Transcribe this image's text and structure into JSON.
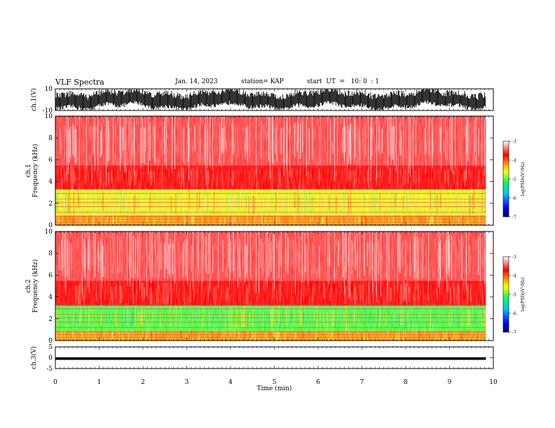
{
  "header": {
    "title": "VLF Spectra",
    "date": "Jan. 14, 2023",
    "station": "station= KAP",
    "start": "start  UT  =   10: 0  : 1"
  },
  "chart_data": [
    {
      "type": "line",
      "panel": "ch1-waveform",
      "title": "",
      "xlabel": "",
      "ylabel": "ch.1(V)",
      "xlim": [
        0,
        10
      ],
      "ylim": [
        -10,
        10
      ],
      "yticks": [
        "10",
        "-10"
      ],
      "x_extent": [
        0,
        9.83
      ],
      "series": [
        {
          "values_min": -8,
          "values_max": 9,
          "envelope": "dense noise band"
        }
      ],
      "color": "#000000"
    },
    {
      "type": "heatmap",
      "panel": "ch1-spectrogram",
      "ylabel": "ch.1\nFrequency (kHz)",
      "xlim": [
        0,
        10
      ],
      "ylim": [
        0,
        10
      ],
      "yticks": [
        "0",
        "2",
        "4",
        "6",
        "8",
        "10"
      ],
      "x_extent": [
        0,
        9.83
      ],
      "colorbar": {
        "label": "log(PSD)(V²/Hz)",
        "ticks": [
          "-3",
          "-4",
          "-5",
          "-6",
          "-7"
        ],
        "range": [
          -7,
          -3
        ],
        "colors": [
          "#000070",
          "#0000ff",
          "#00c0ff",
          "#00ff60",
          "#ffff00",
          "#ff8000",
          "#ff0000",
          "#ffffff"
        ]
      },
      "bands_khz": [
        {
          "from": 0,
          "to": 0.9,
          "level": "orange-yellow"
        },
        {
          "from": 0.9,
          "to": 3.3,
          "level": "yellow-green"
        },
        {
          "from": 3.3,
          "to": 5.5,
          "level": "red"
        },
        {
          "from": 5.5,
          "to": 10,
          "level": "light red / pink"
        }
      ]
    },
    {
      "type": "heatmap",
      "panel": "ch2-spectrogram",
      "ylabel": "ch.2\nFrequency (kHz)",
      "xlim": [
        0,
        10
      ],
      "ylim": [
        0,
        10
      ],
      "yticks": [
        "0",
        "2",
        "4",
        "6",
        "8",
        "10"
      ],
      "x_extent": [
        0,
        9.83
      ],
      "colorbar": {
        "label": "log(PSD)(V²/Hz)",
        "ticks": [
          "-3",
          "-4",
          "-5",
          "-6",
          "-7"
        ],
        "range": [
          -7,
          -3
        ]
      },
      "bands_khz": [
        {
          "from": 0,
          "to": 0.9,
          "level": "orange-yellow"
        },
        {
          "from": 0.9,
          "to": 3.2,
          "level": "green"
        },
        {
          "from": 3.2,
          "to": 5.5,
          "level": "red"
        },
        {
          "from": 5.5,
          "to": 10,
          "level": "light red / pink"
        }
      ]
    },
    {
      "type": "line",
      "panel": "ch3-waveform",
      "ylabel": "ch.3(V)",
      "xlabel": "Time (min)",
      "xlim": [
        0,
        10
      ],
      "ylim": [
        -5,
        5
      ],
      "yticks": [
        "5",
        "0",
        "-5"
      ],
      "xticks": [
        "0",
        "1",
        "2",
        "3",
        "4",
        "5",
        "6",
        "7",
        "8",
        "9",
        "10"
      ],
      "x_extent": [
        0,
        9.83
      ],
      "series": [
        {
          "values_min": -1,
          "values_max": 0.2,
          "envelope": "narrow flat band near -0.5"
        }
      ],
      "color": "#000000"
    }
  ]
}
